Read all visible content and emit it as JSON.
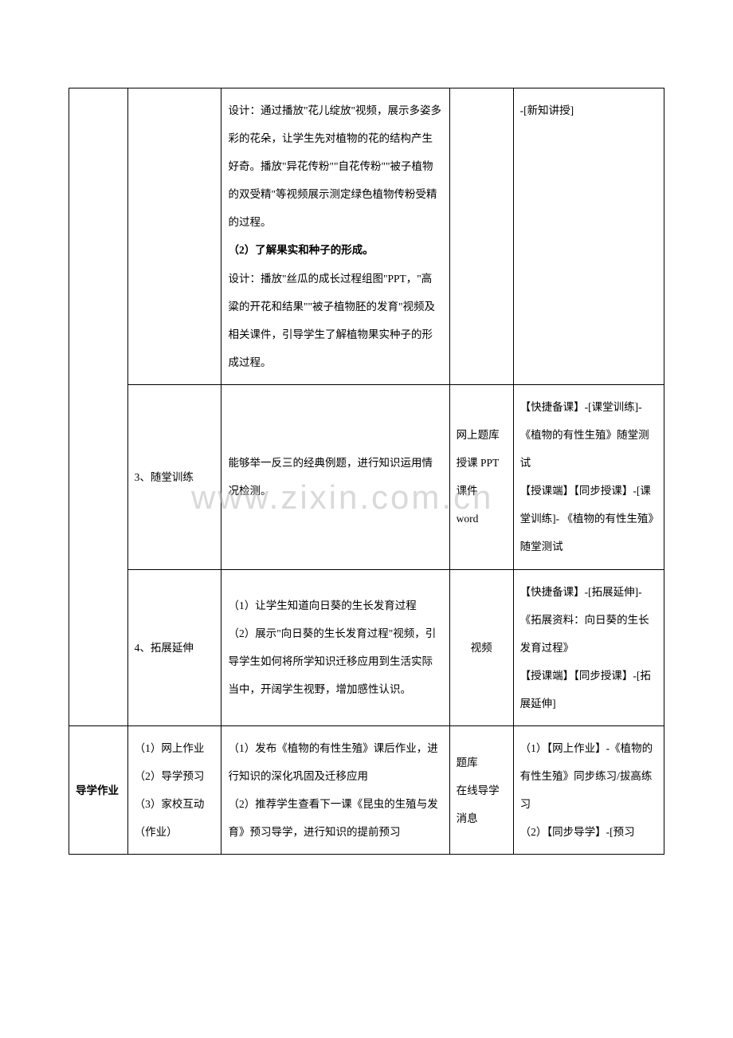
{
  "watermark": "www.zixin.com.cn",
  "row1": {
    "col3_a": "设计：通过播放\"花儿绽放\"视频，展示多姿多彩的花朵，让学生先对植物的花的结构产生好奇。播放\"异花传粉\"\"自花传粉\"\"被子植物的双受精\"等视频展示测定绿色植物传粉受精的过程。",
    "col3_b": "（2）了解果实和种子的形成。",
    "col3_c": "设计：播放\"丝瓜的成长过程组图\"PPT，\"高粱的开花和结果\"\"被子植物胚的发育\"视频及相关课件，引导学生了解植物果实种子的形成过程。",
    "col5": "-[新知讲授]"
  },
  "row2": {
    "col2": "3、随堂训练",
    "col3": "能够举一反三的经典例题，进行知识运用情况检测。",
    "col4": "网上题库\n授课 PPT 课件\nword",
    "col5": "【快捷备课】-[课堂训练]-《植物的有性生殖》随堂测试\n【授课端】【同步授课】-[课堂训练]- 《植物的有性生殖》随堂测试"
  },
  "row3": {
    "col2": "4、拓展延伸",
    "col3": "（1）让学生知道向日葵的生长发育过程\n（2）展示\"向日葵的生长发育过程\"视频，引导学生如何将所学知识迁移应用到生活实际当中，开阔学生视野，增加感性认识。",
    "col4": "视频",
    "col5": "【快捷备课】-[拓展延伸]-《拓展资料：向日葵的生长发育过程》\n【授课端】【同步授课】-[拓展延伸]"
  },
  "row4": {
    "col1": "导学作业",
    "col2": "（1）网上作业\n（2）导学预习\n（3）家校互动（作业）",
    "col3": "（1）发布《植物的有性生殖》课后作业，进行知识的深化巩固及迁移应用\n（2）推荐学生查看下一课《昆虫的生殖与发育》预习导学，进行知识的提前预习",
    "col4": "题库\n在线导学\n消息",
    "col5": "（1）【网上作业】-《植物的有性生殖》同步练习/拔高练习\n（2）【同步导学】-[预习"
  }
}
